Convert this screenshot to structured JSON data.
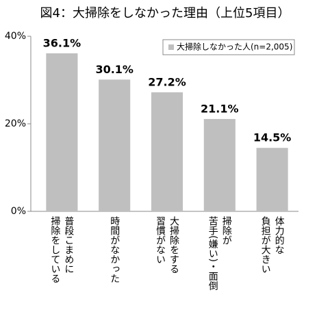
{
  "chart_data": {
    "type": "bar",
    "title": "図4：大掃除をしなかった理由（上位5項目）",
    "categories": [
      "普段こまめに\n掃除をしている",
      "時間がなかった",
      "大掃除をする\n習慣がない",
      "掃除が\n苦手(嫌い)・面倒",
      "体力的な\n負担が大きい"
    ],
    "series": [
      {
        "name": "大掃除しなかった人(n=2,005)",
        "color": "#bfbfbf",
        "values": [
          36.1,
          30.1,
          27.2,
          21.1,
          14.5
        ],
        "value_labels": [
          "36.1%",
          "30.1%",
          "27.2%",
          "21.1%",
          "14.5%"
        ]
      }
    ],
    "ylim": [
      0,
      40
    ],
    "yticks": [
      {
        "value": 0,
        "label": "0%"
      },
      {
        "value": 20,
        "label": "20%"
      },
      {
        "value": 40,
        "label": "40%"
      }
    ],
    "legend": "top-right"
  }
}
